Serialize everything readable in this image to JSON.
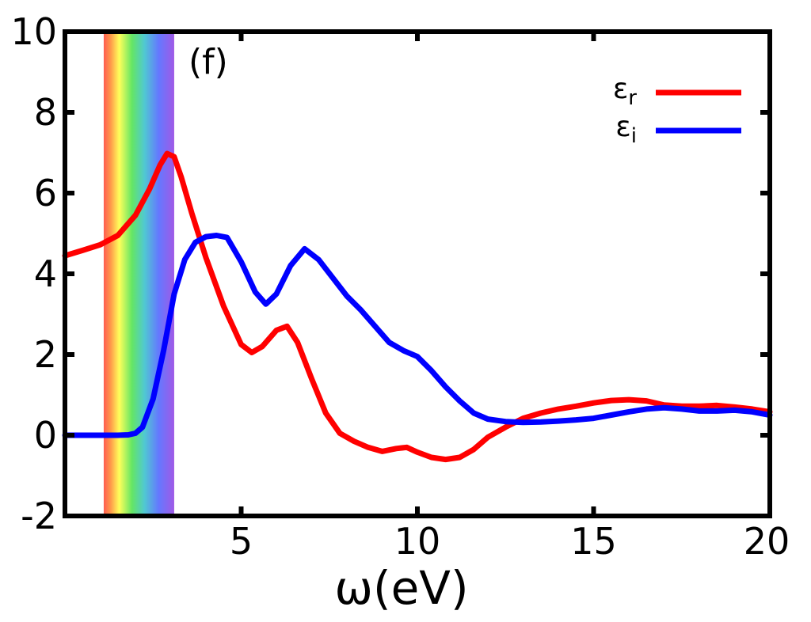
{
  "chart_data": {
    "type": "line",
    "title": "",
    "panel_label": "(f)",
    "xlabel": "ω(eV)",
    "ylabel": "",
    "xlim": [
      0,
      20
    ],
    "ylim": [
      -2,
      10
    ],
    "x_ticks": [
      5,
      10,
      15,
      20
    ],
    "x_tick_labels": [
      "5",
      "10",
      "15",
      "20"
    ],
    "y_ticks": [
      -2,
      0,
      2,
      4,
      6,
      8,
      10
    ],
    "y_tick_labels": [
      "-2",
      "0",
      "2",
      "4",
      "6",
      "8",
      "10"
    ],
    "grid": false,
    "legend_position": "top-right",
    "visible_band": {
      "from": 1.1,
      "to": 3.1,
      "note": "visible spectrum"
    },
    "series": [
      {
        "name": "ε_r",
        "legend_symbol": "ε",
        "legend_sub": "r",
        "color": "#ff0000",
        "x": [
          0,
          0.5,
          1.0,
          1.5,
          2.0,
          2.4,
          2.7,
          2.9,
          3.1,
          3.3,
          3.6,
          4.0,
          4.5,
          5.0,
          5.3,
          5.6,
          6.0,
          6.3,
          6.6,
          7.0,
          7.4,
          7.8,
          8.2,
          8.6,
          9.0,
          9.4,
          9.7,
          10.0,
          10.4,
          10.8,
          11.2,
          11.6,
          12.0,
          12.5,
          13.0,
          13.5,
          14.0,
          14.5,
          15.0,
          15.5,
          16.0,
          16.5,
          17.0,
          17.5,
          18.0,
          18.5,
          19.0,
          19.5,
          20.0
        ],
        "y": [
          4.45,
          4.58,
          4.72,
          4.95,
          5.45,
          6.1,
          6.7,
          6.98,
          6.9,
          6.4,
          5.5,
          4.4,
          3.2,
          2.25,
          2.05,
          2.2,
          2.6,
          2.7,
          2.3,
          1.4,
          0.55,
          0.05,
          -0.15,
          -0.3,
          -0.4,
          -0.33,
          -0.3,
          -0.42,
          -0.55,
          -0.6,
          -0.55,
          -0.35,
          -0.05,
          0.2,
          0.42,
          0.55,
          0.65,
          0.72,
          0.8,
          0.86,
          0.88,
          0.85,
          0.75,
          0.72,
          0.72,
          0.74,
          0.7,
          0.65,
          0.58
        ]
      },
      {
        "name": "ε_i",
        "legend_symbol": "ε",
        "legend_sub": "i",
        "color": "#0000ff",
        "x": [
          0,
          0.5,
          1.0,
          1.5,
          1.8,
          2.0,
          2.2,
          2.5,
          2.8,
          3.1,
          3.4,
          3.7,
          4.0,
          4.3,
          4.6,
          5.0,
          5.4,
          5.7,
          6.0,
          6.4,
          6.8,
          7.2,
          7.6,
          8.0,
          8.4,
          8.8,
          9.2,
          9.6,
          10.0,
          10.4,
          10.8,
          11.2,
          11.6,
          12.0,
          12.5,
          13.0,
          13.5,
          14.0,
          14.5,
          15.0,
          15.5,
          16.0,
          16.5,
          17.0,
          17.5,
          18.0,
          18.5,
          19.0,
          19.5,
          20.0
        ],
        "y": [
          0.0,
          0.0,
          0.0,
          0.0,
          0.01,
          0.05,
          0.2,
          0.9,
          2.1,
          3.5,
          4.35,
          4.78,
          4.92,
          4.95,
          4.9,
          4.3,
          3.55,
          3.25,
          3.5,
          4.2,
          4.62,
          4.35,
          3.9,
          3.45,
          3.1,
          2.7,
          2.3,
          2.1,
          1.95,
          1.6,
          1.2,
          0.85,
          0.55,
          0.4,
          0.34,
          0.32,
          0.33,
          0.35,
          0.38,
          0.42,
          0.5,
          0.58,
          0.65,
          0.68,
          0.65,
          0.6,
          0.6,
          0.62,
          0.58,
          0.5
        ]
      }
    ]
  }
}
